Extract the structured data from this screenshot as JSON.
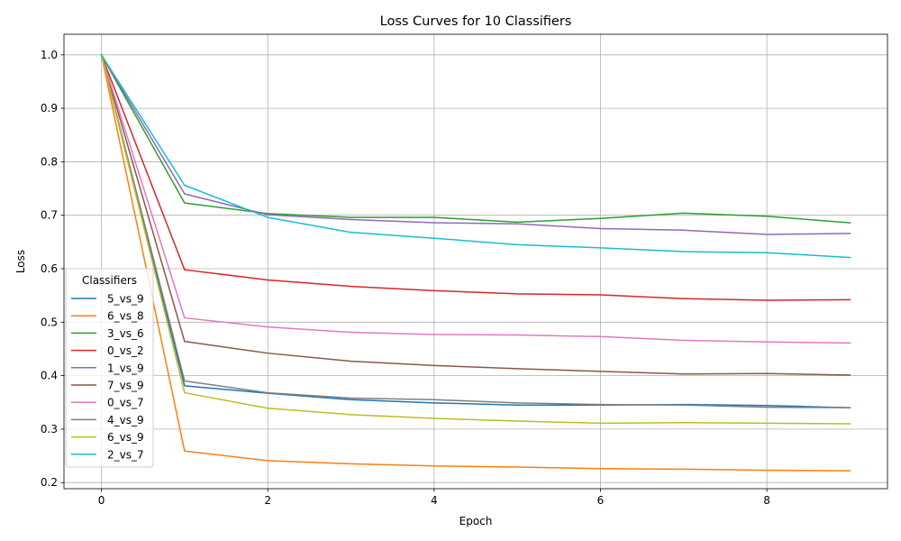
{
  "chart_data": {
    "type": "line",
    "title": "Loss Curves for 10 Classifiers",
    "xlabel": "Epoch",
    "ylabel": "Loss",
    "xlim": [
      -0.45,
      9.45
    ],
    "ylim": [
      0.1885,
      1.0385
    ],
    "xticks": [
      0,
      2,
      4,
      6,
      8
    ],
    "yticks": [
      0.2,
      0.3,
      0.4,
      0.5,
      0.6,
      0.7,
      0.8,
      0.9,
      1.0
    ],
    "grid": true,
    "legend": {
      "title": "Classifiers",
      "placement": "lower-left"
    },
    "x": [
      0,
      1,
      2,
      3,
      4,
      5,
      6,
      7,
      8,
      9
    ],
    "series": [
      {
        "name": "5_vs_9",
        "color": "#1f77b4",
        "values": [
          1.0,
          0.381,
          0.367,
          0.355,
          0.349,
          0.345,
          0.345,
          0.346,
          0.344,
          0.34
        ]
      },
      {
        "name": "6_vs_8",
        "color": "#ff7f0e",
        "values": [
          1.0,
          0.259,
          0.241,
          0.235,
          0.231,
          0.229,
          0.226,
          0.225,
          0.223,
          0.222
        ]
      },
      {
        "name": "3_vs_6",
        "color": "#2ca02c",
        "values": [
          1.0,
          0.723,
          0.703,
          0.696,
          0.696,
          0.687,
          0.694,
          0.704,
          0.698,
          0.686
        ]
      },
      {
        "name": "0_vs_2",
        "color": "#d62728",
        "values": [
          1.0,
          0.598,
          0.579,
          0.567,
          0.559,
          0.553,
          0.551,
          0.544,
          0.541,
          0.542
        ]
      },
      {
        "name": "1_vs_9",
        "color": "#9467bd",
        "values": [
          1.0,
          0.74,
          0.701,
          0.692,
          0.686,
          0.684,
          0.675,
          0.672,
          0.664,
          0.666
        ]
      },
      {
        "name": "7_vs_9",
        "color": "#8c564b",
        "values": [
          1.0,
          0.464,
          0.442,
          0.427,
          0.419,
          0.413,
          0.408,
          0.403,
          0.404,
          0.401
        ]
      },
      {
        "name": "0_vs_7",
        "color": "#e377c2",
        "values": [
          1.0,
          0.508,
          0.491,
          0.481,
          0.477,
          0.476,
          0.473,
          0.466,
          0.463,
          0.461
        ]
      },
      {
        "name": "4_vs_9",
        "color": "#7f7f7f",
        "values": [
          1.0,
          0.39,
          0.368,
          0.358,
          0.355,
          0.349,
          0.346,
          0.345,
          0.341,
          0.34
        ]
      },
      {
        "name": "6_vs_9",
        "color": "#bcbd22",
        "values": [
          1.0,
          0.368,
          0.339,
          0.327,
          0.32,
          0.315,
          0.311,
          0.312,
          0.311,
          0.31
        ]
      },
      {
        "name": "2_vs_7",
        "color": "#17becf",
        "values": [
          1.0,
          0.756,
          0.696,
          0.668,
          0.657,
          0.645,
          0.639,
          0.632,
          0.63,
          0.621
        ]
      }
    ]
  }
}
